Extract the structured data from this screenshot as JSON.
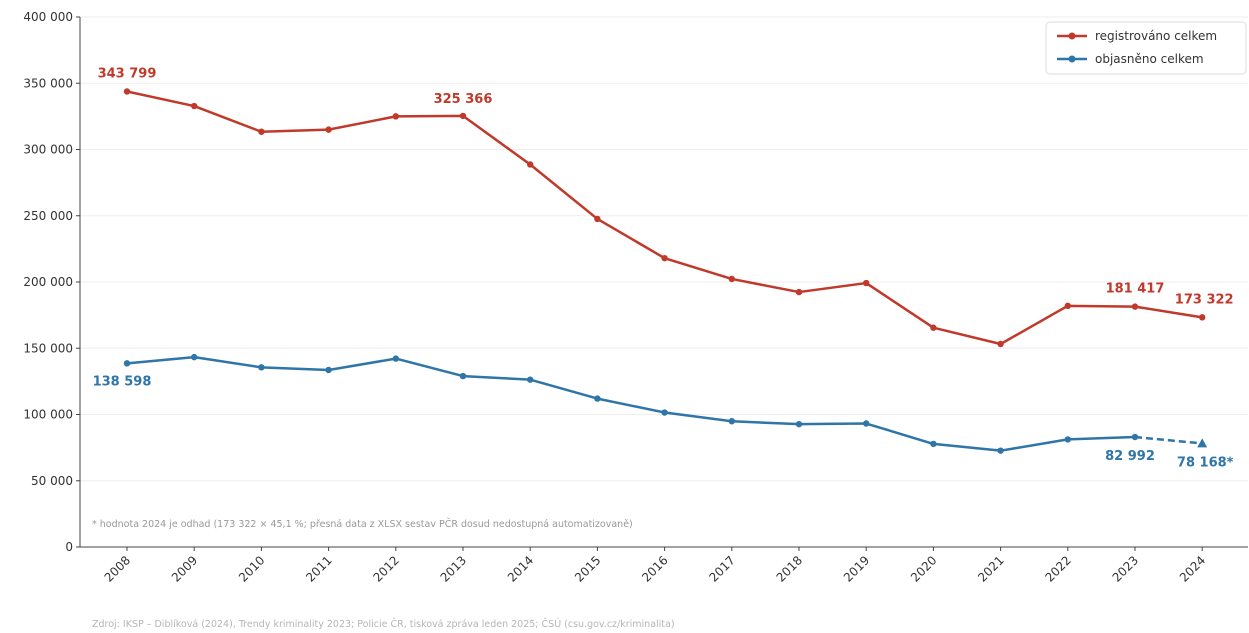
{
  "chart_data": {
    "type": "line",
    "x": [
      "2008",
      "2009",
      "2010",
      "2011",
      "2012",
      "2013",
      "2014",
      "2015",
      "2016",
      "2017",
      "2018",
      "2019",
      "2020",
      "2021",
      "2022",
      "2023",
      "2024"
    ],
    "ylim": [
      0,
      400000
    ],
    "yticks": [
      0,
      50000,
      100000,
      150000,
      200000,
      250000,
      300000,
      350000,
      400000
    ],
    "ytick_labels": [
      "0",
      "50 000",
      "100 000",
      "150 000",
      "200 000",
      "250 000",
      "300 000",
      "350 000",
      "400 000"
    ],
    "grid": "horizontal",
    "legend_position": "top-right",
    "series": [
      {
        "name": "registrováno celkem",
        "color": "#c0392b",
        "values": [
          343799,
          332800,
          313400,
          315000,
          325000,
          325366,
          288700,
          247600,
          218000,
          202300,
          192400,
          199200,
          165500,
          153200,
          182000,
          181417,
          173322
        ]
      },
      {
        "name": "objasněno celkem",
        "color": "#2e75a8",
        "values": [
          138598,
          143300,
          135600,
          133600,
          142200,
          129000,
          126300,
          112000,
          101500,
          94900,
          92700,
          93200,
          77800,
          72700,
          81200,
          82992,
          78168
        ],
        "estimated_last": true
      }
    ],
    "annotations": [
      {
        "series": 0,
        "index": 0,
        "text": "343 799"
      },
      {
        "series": 0,
        "index": 5,
        "text": "325 366"
      },
      {
        "series": 0,
        "index": 15,
        "text": "181 417"
      },
      {
        "series": 0,
        "index": 16,
        "text": "173 322"
      },
      {
        "series": 1,
        "index": 0,
        "text": "138 598"
      },
      {
        "series": 1,
        "index": 15,
        "text": "82 992"
      },
      {
        "series": 1,
        "index": 16,
        "text": "78 168*"
      }
    ],
    "footnote": "* hodnota 2024 je odhad (173 322 × 45,1 %; přesná data z XLSX sestav PČR dosud nedostupná automatizovaně)",
    "source": "Zdroj: IKSP – Diblíková (2024), Trendy kriminality 2023; Policie ČR, tisková zpráva leden 2025; ČSÚ (csu.gov.cz/kriminalita)"
  }
}
